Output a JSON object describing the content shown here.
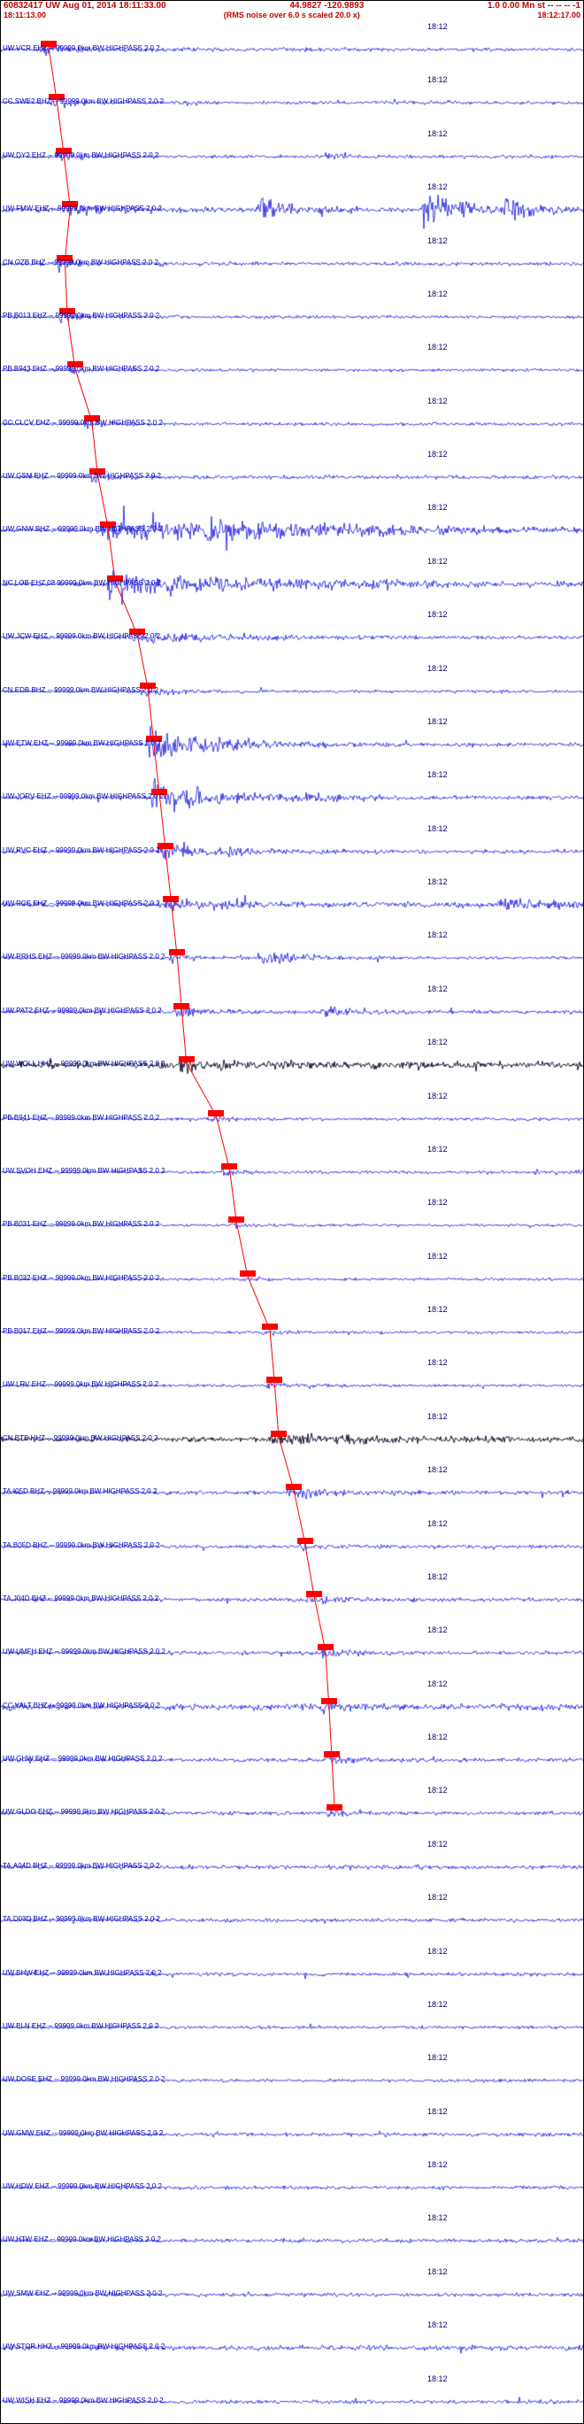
{
  "header": {
    "line1_left": "60832417 UW Aug 01, 2014 18:11:33.00",
    "line1_mid": "44.9827 -120.9893",
    "line1_right": "1.0 0.00 Mn st -- -- -- -1",
    "window_start": "18:11:13.00",
    "scale_note": "(RMS noise over 6.0 s scaled 20.0 x)",
    "window_end": "18:12:17.00"
  },
  "minute_label": "18:12",
  "colors": {
    "header_red": "#c40000",
    "label_blue": "#0000bb",
    "minute_blue": "#000066",
    "trace_blue": "#0000e0",
    "trace_dark": "#000022",
    "pick_red": "#ff0000"
  },
  "traces": [
    {
      "label": "UW.VCR EHZ -- 99999.0km BW HIGHPASS 2.0 2",
      "color": "blue",
      "pick": 0.068,
      "waveform": {
        "noise": 1.8,
        "bursts": [
          {
            "x": 0.068,
            "amp": 5,
            "decay": 30
          }
        ]
      }
    },
    {
      "label": "CC.SWE2 BHZ -- 99999.0km BW HIGHPASS 2.0 2",
      "color": "blue",
      "pick": 0.082,
      "waveform": {
        "noise": 1.6,
        "bursts": [
          {
            "x": 0.082,
            "amp": 4,
            "decay": 25
          },
          {
            "x": 0.3,
            "amp": 3,
            "decay": 15
          }
        ]
      }
    },
    {
      "label": "UW.DY2 EHZ -- 99999.0km BW HIGHPASS 2.0 2",
      "color": "blue",
      "pick": 0.094,
      "waveform": {
        "noise": 1.6,
        "bursts": [
          {
            "x": 0.094,
            "amp": 4,
            "decay": 25
          },
          {
            "x": 0.55,
            "amp": 3,
            "decay": 20
          }
        ]
      }
    },
    {
      "label": "UW.FMW EHZ -- 99999.0km BW HIGHPASS 2.0 2",
      "color": "blue",
      "pick": 0.105,
      "waveform": {
        "noise": 2.5,
        "bursts": [
          {
            "x": 0.105,
            "amp": 6,
            "decay": 40
          },
          {
            "x": 0.44,
            "amp": 11,
            "decay": 35
          },
          {
            "x": 0.72,
            "amp": 15,
            "decay": 45
          },
          {
            "x": 0.86,
            "amp": 9,
            "decay": 30
          }
        ]
      }
    },
    {
      "label": "CN.OZB BHZ -- 99999.0km BW HIGHPASS 2.0 2",
      "color": "blue",
      "pick": 0.096,
      "waveform": {
        "noise": 1.8,
        "bursts": [
          {
            "x": 0.096,
            "amp": 7,
            "decay": 20
          }
        ]
      }
    },
    {
      "label": "PB.B013 EHZ -- 99999.0km BW HIGHPASS 2.0 2",
      "color": "blue",
      "pick": 0.1,
      "waveform": {
        "noise": 1.5,
        "bursts": [
          {
            "x": 0.1,
            "amp": 5,
            "decay": 18
          }
        ]
      }
    },
    {
      "label": "PB.B943 EHZ -- 99999.0km BW HIGHPASS 2.0 2",
      "color": "blue",
      "pick": 0.113,
      "waveform": {
        "noise": 1.5,
        "bursts": [
          {
            "x": 0.113,
            "amp": 4,
            "decay": 18
          }
        ]
      }
    },
    {
      "label": "CC.CLCV EHZ -- 99999.0km BW HIGHPASS 2.0 2",
      "color": "blue",
      "pick": 0.142,
      "waveform": {
        "noise": 1.5,
        "bursts": [
          {
            "x": 0.142,
            "amp": 5,
            "decay": 25
          }
        ]
      }
    },
    {
      "label": "UW.GSM EHZ -- 99999.0km BW HIGHPASS 2.0 2",
      "color": "blue",
      "pick": 0.152,
      "waveform": {
        "noise": 1.8,
        "bursts": [
          {
            "x": 0.152,
            "amp": 5,
            "decay": 30
          }
        ]
      }
    },
    {
      "label": "UW.GNW BHZ -- 99999.0km BW HIGHPASS 2.0 2",
      "color": "blue",
      "pick": 0.17,
      "waveform": {
        "noise": 2.0,
        "bursts": [
          {
            "x": 0.17,
            "amp": 9,
            "decay": 200
          },
          {
            "x": 0.35,
            "amp": 6,
            "decay": 150
          }
        ]
      }
    },
    {
      "label": "NC.LOB EHZ.02 99999.0km BW HIGHPASS 2.0 2",
      "color": "blue",
      "pick": 0.182,
      "waveform": {
        "noise": 2.2,
        "bursts": [
          {
            "x": 0.182,
            "amp": 11,
            "decay": 180
          }
        ]
      }
    },
    {
      "label": "UW.JCW EHZ -- 99999.0km BW HIGHPASS 2.0 2",
      "color": "blue",
      "pick": 0.22,
      "waveform": {
        "noise": 1.8,
        "bursts": [
          {
            "x": 0.22,
            "amp": 5,
            "decay": 90
          }
        ]
      }
    },
    {
      "label": "CN.EDB BHZ -- 99999.0km BW HIGHPASS 2.0 2",
      "color": "blue",
      "pick": 0.238,
      "waveform": {
        "noise": 1.5,
        "bursts": [
          {
            "x": 0.238,
            "amp": 4,
            "decay": 40
          }
        ]
      }
    },
    {
      "label": "UW.ETW EHZ -- 99999.0km BW HIGHPASS 2.0 2",
      "color": "blue",
      "pick": 0.248,
      "waveform": {
        "noise": 1.8,
        "bursts": [
          {
            "x": 0.248,
            "amp": 16,
            "decay": 70
          }
        ]
      }
    },
    {
      "label": "UW.JORV EHZ -- 99999.0km BW HIGHPASS 2.0 2",
      "color": "blue",
      "pick": 0.258,
      "waveform": {
        "noise": 1.8,
        "bursts": [
          {
            "x": 0.258,
            "amp": 18,
            "decay": 60
          },
          {
            "x": 0.5,
            "amp": 4,
            "decay": 60
          }
        ]
      }
    },
    {
      "label": "UW.RVC EHZ -- 99999.0km BW HIGHPASS 2.0 2",
      "color": "blue",
      "pick": 0.268,
      "waveform": {
        "noise": 1.8,
        "bursts": [
          {
            "x": 0.268,
            "amp": 6,
            "decay": 80
          }
        ]
      }
    },
    {
      "label": "UW.RCS EHZ -- 99999.0km BW HIGHPASS 2.0 2",
      "color": "blue",
      "pick": 0.278,
      "waveform": {
        "noise": 2.6,
        "bursts": [
          {
            "x": 0.278,
            "amp": 5,
            "decay": 60
          },
          {
            "x": 0.85,
            "amp": 6,
            "decay": 50
          }
        ]
      }
    },
    {
      "label": "UW.RRHS EHZ -- 99999.0km BW HIGHPASS 2.0 2",
      "color": "blue",
      "pick": 0.288,
      "waveform": {
        "noise": 1.5,
        "bursts": [
          {
            "x": 0.288,
            "amp": 4,
            "decay": 30
          },
          {
            "x": 0.44,
            "amp": 8,
            "decay": 40
          }
        ]
      }
    },
    {
      "label": "UW.PAT2 EHZ -- 99999.0km BW HIGHPASS 2.0 2",
      "color": "blue",
      "pick": 0.296,
      "waveform": {
        "noise": 1.8,
        "bursts": [
          {
            "x": 0.296,
            "amp": 5,
            "decay": 40
          },
          {
            "x": 0.55,
            "amp": 4,
            "decay": 40
          }
        ]
      }
    },
    {
      "label": "UW.WOLL HHZ -- 99999.0km BW HIGHPASS 2.0 2",
      "color": "dark",
      "pick": 0.304,
      "waveform": {
        "noise": 3.2,
        "bursts": [
          {
            "x": 0.304,
            "amp": 4,
            "decay": 80
          }
        ]
      }
    },
    {
      "label": "PB.B941 EHZ -- 99999.0km BW HIGHPASS 2.0 2",
      "color": "blue",
      "pick": 0.355,
      "waveform": {
        "noise": 1.5,
        "bursts": [
          {
            "x": 0.355,
            "amp": 3,
            "decay": 25
          }
        ]
      }
    },
    {
      "label": "UW.SVOH EHZ -- 99999.0km BW HIGHPASS 2.0 2",
      "color": "blue",
      "pick": 0.378,
      "waveform": {
        "noise": 1.5,
        "bursts": [
          {
            "x": 0.378,
            "amp": 3,
            "decay": 25
          }
        ]
      }
    },
    {
      "label": "PB.B031 EHZ -- 99999.0km BW HIGHPASS 2.0 2",
      "color": "blue",
      "pick": 0.39,
      "waveform": {
        "noise": 1.4,
        "bursts": [
          {
            "x": 0.39,
            "amp": 2.5,
            "decay": 20
          }
        ]
      }
    },
    {
      "label": "PB.B032 EHZ -- 99999.0km BW HIGHPASS 2.0 2",
      "color": "blue",
      "pick": 0.409,
      "waveform": {
        "noise": 1.4,
        "bursts": [
          {
            "x": 0.409,
            "amp": 2.5,
            "decay": 20
          }
        ]
      }
    },
    {
      "label": "PB.B017 EHZ -- 99999.0km BW HIGHPASS 2.0 2",
      "color": "blue",
      "pick": 0.447,
      "waveform": {
        "noise": 1.4,
        "bursts": [
          {
            "x": 0.447,
            "amp": 2.5,
            "decay": 20
          }
        ]
      }
    },
    {
      "label": "UW.LRV EHZ -- 99999.0km BW HIGHPASS 2.0 2",
      "color": "blue",
      "pick": 0.455,
      "waveform": {
        "noise": 1.5,
        "bursts": [
          {
            "x": 0.455,
            "amp": 3,
            "decay": 25
          }
        ]
      }
    },
    {
      "label": "CN.BTB HHZ -- 99999.0km BW HIGHPASS 2.0 2",
      "color": "dark",
      "pick": 0.462,
      "waveform": {
        "noise": 2.4,
        "bursts": [
          {
            "x": 0.462,
            "amp": 6,
            "decay": 90
          }
        ]
      }
    },
    {
      "label": "TA.I05D BHZ -- 99999.0km BW HIGHPASS 2.0 2",
      "color": "blue",
      "pick": 0.488,
      "waveform": {
        "noise": 1.8,
        "bursts": [
          {
            "x": 0.488,
            "amp": 5,
            "decay": 60
          }
        ]
      }
    },
    {
      "label": "TA.B05D BHZ -- 99999.0km BW HIGHPASS 2.0 2",
      "color": "blue",
      "pick": 0.507,
      "waveform": {
        "noise": 1.6,
        "bursts": [
          {
            "x": 0.507,
            "amp": 3,
            "decay": 30
          }
        ]
      }
    },
    {
      "label": "TA.J04D BHZ -- 99999.0km BW HIGHPASS 2.0 2",
      "color": "blue",
      "pick": 0.523,
      "waveform": {
        "noise": 1.8,
        "bursts": [
          {
            "x": 0.523,
            "amp": 4,
            "decay": 40
          }
        ]
      }
    },
    {
      "label": "UW.UMFH EHZ -- 99999.0km BW HIGHPASS 2.0 2",
      "color": "blue",
      "pick": 0.542,
      "waveform": {
        "noise": 1.8,
        "bursts": [
          {
            "x": 0.542,
            "amp": 4,
            "decay": 40
          }
        ]
      }
    },
    {
      "label": "CC.VALT BHZ -- 99999.0km BW HIGHPASS 2.0 2",
      "color": "blue",
      "pick": 0.548,
      "waveform": {
        "noise": 3.0,
        "bursts": [
          {
            "x": 0.548,
            "amp": 3,
            "decay": 40
          }
        ]
      }
    },
    {
      "label": "UW.GHW EHZ -- 99999.0km BW HIGHPASS 2.0 2",
      "color": "blue",
      "pick": 0.553,
      "waveform": {
        "noise": 1.8,
        "bursts": [
          {
            "x": 0.553,
            "amp": 3,
            "decay": 30
          }
        ]
      }
    },
    {
      "label": "UW.GLDO EHZ -- 99999.0km BW HIGHPASS 2.0 2",
      "color": "blue",
      "pick": 0.558,
      "waveform": {
        "noise": 1.8,
        "bursts": [
          {
            "x": 0.558,
            "amp": 3,
            "decay": 30
          }
        ]
      }
    },
    {
      "label": "TA.A04D BHZ -- 99999.0km BW HIGHPASS 2.0 2",
      "color": "blue",
      "pick": null,
      "waveform": {
        "noise": 2.0,
        "bursts": []
      }
    },
    {
      "label": "TA.D03D BHZ -- 99999.0km BW HIGHPASS 2.0 2",
      "color": "blue",
      "pick": null,
      "waveform": {
        "noise": 1.8,
        "bursts": []
      }
    },
    {
      "label": "UW.BHW EHZ -- 99999.0km BW HIGHPASS 2.0 2",
      "color": "blue",
      "pick": null,
      "waveform": {
        "noise": 1.8,
        "bursts": []
      }
    },
    {
      "label": "UW.BLN EHZ -- 99999.0km BW HIGHPASS 2.0 2",
      "color": "blue",
      "pick": null,
      "waveform": {
        "noise": 1.5,
        "bursts": []
      }
    },
    {
      "label": "UW.DOSE EHZ -- 99999.0km BW HIGHPASS 2.0 2",
      "color": "blue",
      "pick": null,
      "waveform": {
        "noise": 1.5,
        "bursts": []
      }
    },
    {
      "label": "UW.GMW EHZ -- 99999.0km BW HIGHPASS 2.0 2",
      "color": "blue",
      "pick": null,
      "waveform": {
        "noise": 1.8,
        "bursts": []
      }
    },
    {
      "label": "UW.HDW EHZ -- 99999.0km BW HIGHPASS 2.0 2",
      "color": "blue",
      "pick": null,
      "waveform": {
        "noise": 1.8,
        "bursts": []
      }
    },
    {
      "label": "UW.HTW EHZ -- 99999.0km BW HIGHPASS 2.0 2",
      "color": "blue",
      "pick": null,
      "waveform": {
        "noise": 1.8,
        "bursts": []
      }
    },
    {
      "label": "UW.SMW EHZ -- 99999.0km BW HIGHPASS 2.0 2",
      "color": "blue",
      "pick": null,
      "waveform": {
        "noise": 1.8,
        "bursts": []
      }
    },
    {
      "label": "UW.STOR HHZ -- 99999.0km BW HIGHPASS 2.0 2",
      "color": "blue",
      "pick": null,
      "waveform": {
        "noise": 2.4,
        "bursts": []
      }
    },
    {
      "label": "UW.WISH EHZ -- 99999.0km BW HIGHPASS 2.0 2",
      "color": "blue",
      "pick": null,
      "waveform": {
        "noise": 1.8,
        "bursts": []
      }
    }
  ]
}
